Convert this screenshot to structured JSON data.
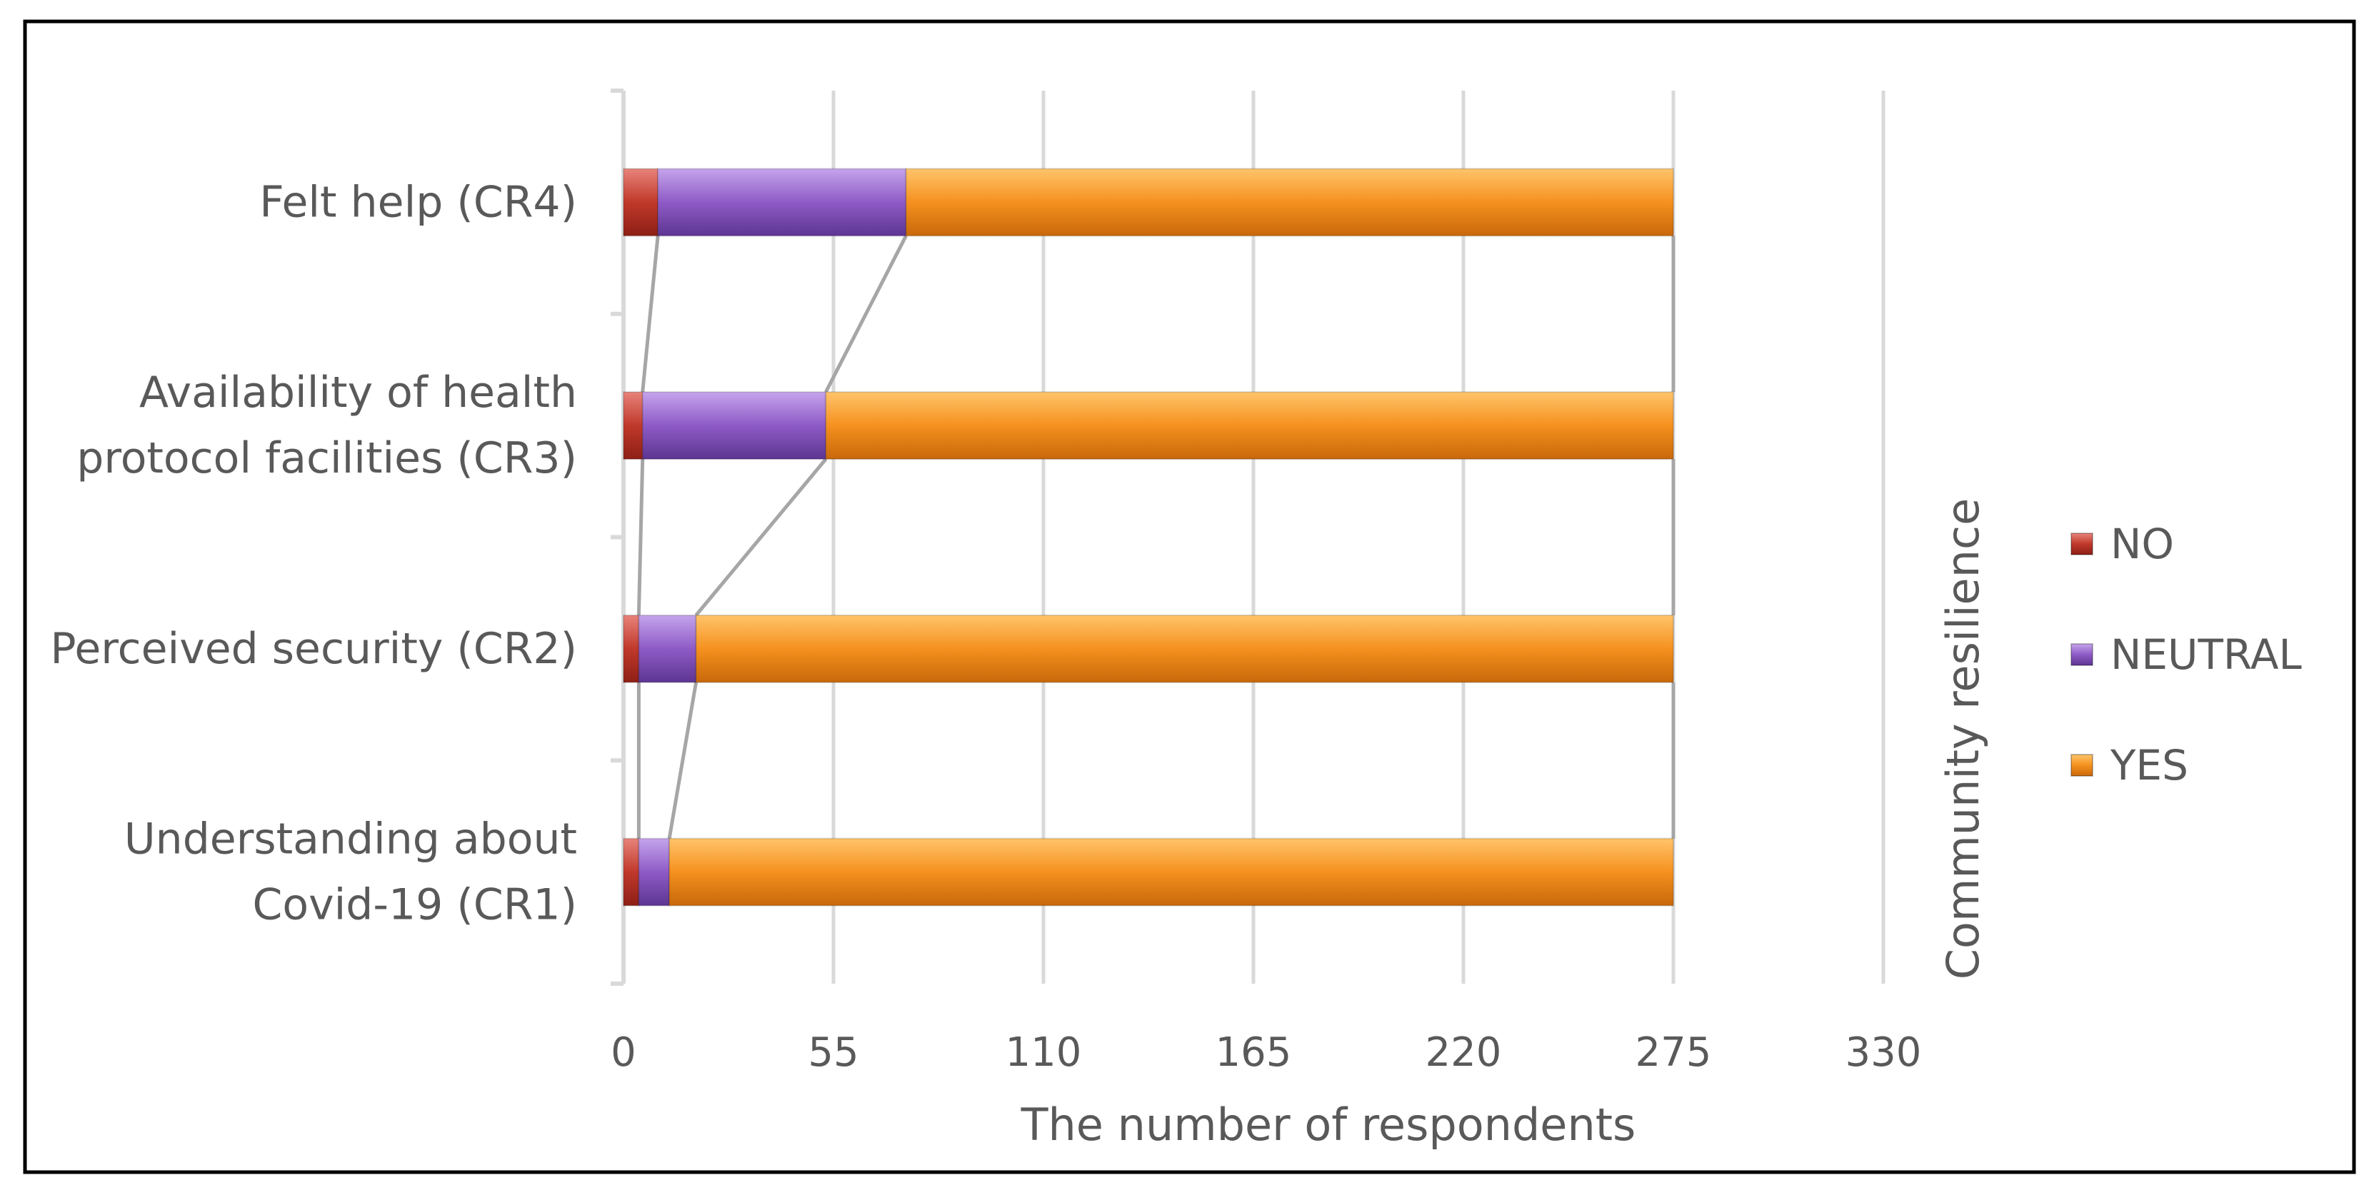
{
  "chart_data": {
    "type": "bar",
    "orientation": "horizontal",
    "stacked": true,
    "categories": [
      "Felt help (CR4)",
      "Availability of health protocol facilities (CR3)",
      "Perceived security (CR2)",
      "Understanding about Covid-19 (CR1)"
    ],
    "category_label_lines": [
      [
        "Felt help (CR4)"
      ],
      [
        "Availability of health",
        "protocol facilities (CR3)"
      ],
      [
        "Perceived security (CR2)"
      ],
      [
        "Understanding about",
        "Covid-19 (CR1)"
      ]
    ],
    "series": [
      {
        "name": "NO",
        "values": [
          9,
          5,
          4,
          4
        ],
        "color": "#c0392b"
      },
      {
        "name": "NEUTRAL",
        "values": [
          65,
          48,
          15,
          8
        ],
        "color": "#8e5bc6"
      },
      {
        "name": "YES",
        "values": [
          201,
          222,
          256,
          263
        ],
        "color": "#f5911f"
      }
    ],
    "title": "",
    "xlabel": "The number of respondents",
    "ylabel": "",
    "side_label": "Community resilience",
    "xlim": [
      0,
      330
    ],
    "xticks": [
      0,
      55,
      110,
      165,
      220,
      275,
      330
    ],
    "grid": true,
    "series_lines": true,
    "legend_position": "right"
  }
}
